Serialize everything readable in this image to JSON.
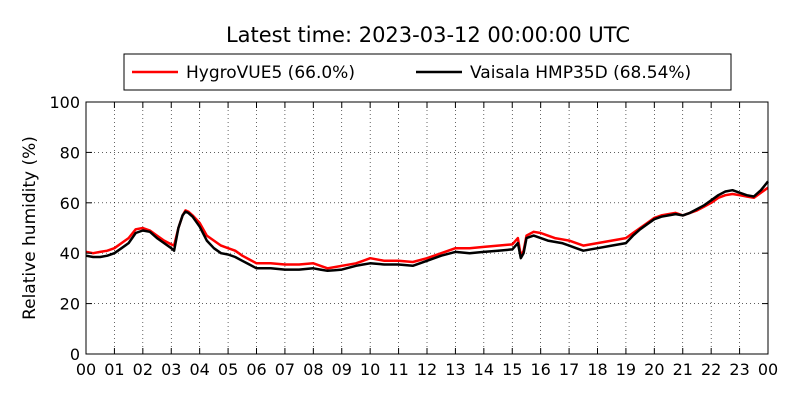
{
  "chart_data": {
    "type": "line",
    "title": "Latest time: 2023-03-12 00:00:00 UTC",
    "ylabel": "Relative humidity (%)",
    "xlabel": "",
    "xlim": [
      0,
      24
    ],
    "ylim": [
      0,
      100
    ],
    "x_ticks": [
      0,
      1,
      2,
      3,
      4,
      5,
      6,
      7,
      8,
      9,
      10,
      11,
      12,
      13,
      14,
      15,
      16,
      17,
      18,
      19,
      20,
      21,
      22,
      23,
      24
    ],
    "x_tick_labels": [
      "00",
      "01",
      "02",
      "03",
      "04",
      "05",
      "06",
      "07",
      "08",
      "09",
      "10",
      "11",
      "12",
      "13",
      "14",
      "15",
      "16",
      "17",
      "18",
      "19",
      "20",
      "21",
      "22",
      "23",
      "00"
    ],
    "y_ticks": [
      0,
      20,
      40,
      60,
      80,
      100
    ],
    "y_tick_labels": [
      "0",
      "20",
      "40",
      "60",
      "80",
      "100"
    ],
    "grid": true,
    "legend_position": "top",
    "series": [
      {
        "name": "HygroVUE5 (66.0%)",
        "color": "#ff0000",
        "x": [
          0,
          0.25,
          0.5,
          0.75,
          1,
          1.25,
          1.5,
          1.75,
          2,
          2.25,
          2.5,
          2.75,
          3,
          3.1,
          3.25,
          3.4,
          3.5,
          3.6,
          3.75,
          4,
          4.25,
          4.5,
          4.75,
          5,
          5.25,
          5.5,
          5.75,
          6,
          6.5,
          7,
          7.5,
          8,
          8.25,
          8.5,
          8.75,
          9,
          9.5,
          9.75,
          10,
          10.5,
          11,
          11.5,
          12,
          12.5,
          13,
          13.5,
          14,
          14.5,
          15,
          15.2,
          15.3,
          15.4,
          15.5,
          15.75,
          16,
          16.25,
          16.5,
          16.75,
          17,
          17.25,
          17.5,
          18,
          18.5,
          19,
          19.25,
          19.5,
          19.75,
          20,
          20.25,
          20.5,
          20.75,
          21,
          21.25,
          21.5,
          21.75,
          22,
          22.25,
          22.5,
          22.75,
          23,
          23.25,
          23.5,
          23.75,
          24
        ],
        "y": [
          40.5,
          40,
          40.5,
          41,
          42,
          44,
          46,
          49.5,
          50,
          49,
          47,
          45,
          43.5,
          43,
          50,
          55,
          57,
          56.5,
          55,
          52,
          47,
          45,
          43,
          42,
          41,
          39,
          37.5,
          36,
          36,
          35.5,
          35.5,
          36,
          35,
          34,
          34.5,
          35,
          36,
          37,
          38,
          37,
          37,
          36.5,
          38,
          40,
          42,
          42,
          42.5,
          43,
          43.5,
          46,
          39,
          41,
          47,
          48.5,
          48,
          47,
          46,
          45.5,
          45,
          44,
          43,
          44,
          45,
          46,
          48,
          50,
          52,
          54,
          55,
          55.5,
          56,
          55,
          56,
          57,
          58.5,
          60,
          62,
          63,
          63.5,
          63,
          62.5,
          62,
          64,
          66
        ]
      },
      {
        "name": "Vaisala HMP35D (68.54%)",
        "color": "#000000",
        "x": [
          0,
          0.25,
          0.5,
          0.75,
          1,
          1.25,
          1.5,
          1.75,
          2,
          2.25,
          2.5,
          2.75,
          3,
          3.1,
          3.25,
          3.4,
          3.5,
          3.6,
          3.75,
          4,
          4.25,
          4.5,
          4.75,
          5,
          5.25,
          5.5,
          5.75,
          6,
          6.5,
          7,
          7.5,
          8,
          8.25,
          8.5,
          8.75,
          9,
          9.5,
          9.75,
          10,
          10.5,
          11,
          11.5,
          12,
          12.5,
          13,
          13.5,
          14,
          14.5,
          15,
          15.2,
          15.3,
          15.4,
          15.5,
          15.75,
          16,
          16.25,
          16.5,
          16.75,
          17,
          17.25,
          17.5,
          18,
          18.5,
          19,
          19.25,
          19.5,
          19.75,
          20,
          20.25,
          20.5,
          20.75,
          21,
          21.25,
          21.5,
          21.75,
          22,
          22.25,
          22.5,
          22.75,
          23,
          23.25,
          23.5,
          23.75,
          24
        ],
        "y": [
          39,
          38.5,
          38.5,
          39,
          40,
          42,
          44,
          48,
          49,
          48.5,
          46,
          44,
          42,
          41,
          50,
          55,
          56.5,
          56,
          54.5,
          50.5,
          45,
          42,
          40,
          39.5,
          38.5,
          37,
          35.5,
          34,
          34,
          33.5,
          33.5,
          34,
          33.5,
          33,
          33.2,
          33.5,
          35,
          35.5,
          36,
          35.5,
          35.5,
          35,
          37,
          39,
          40.5,
          40,
          40.5,
          41,
          41.5,
          44,
          38,
          40,
          46,
          47,
          46,
          45,
          44.5,
          44,
          43,
          42,
          41,
          42,
          43,
          44,
          47,
          49.5,
          51.5,
          53.5,
          54.5,
          55,
          55.5,
          55,
          56,
          57.5,
          59,
          61,
          63,
          64.5,
          65,
          64,
          63,
          62.5,
          65,
          68.5
        ]
      }
    ]
  }
}
